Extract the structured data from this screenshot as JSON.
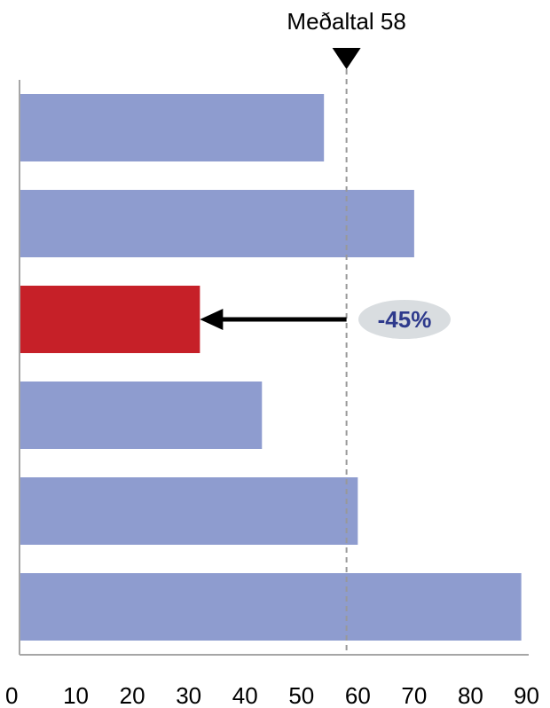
{
  "chart_data": {
    "type": "bar",
    "orientation": "horizontal",
    "categories": [
      "",
      "",
      "",
      "",
      "",
      ""
    ],
    "values": [
      54,
      70,
      32,
      43,
      60,
      89
    ],
    "highlight_index": 2,
    "xlim": [
      0,
      90
    ],
    "xticks": [
      0,
      10,
      20,
      30,
      40,
      50,
      60,
      70,
      80,
      90
    ],
    "grid": false,
    "average": {
      "value": 58,
      "label": "Meðaltal 58"
    },
    "callout": {
      "text": "-45%",
      "bar_index": 2
    },
    "colors": {
      "bar": "#8e9ccf",
      "highlight": "#c62028",
      "average_line": "#999999",
      "axis": "#a6a6a6",
      "callout_bg": "#d9dde0",
      "callout_text": "#2e3a8c",
      "marker": "#000000"
    }
  }
}
